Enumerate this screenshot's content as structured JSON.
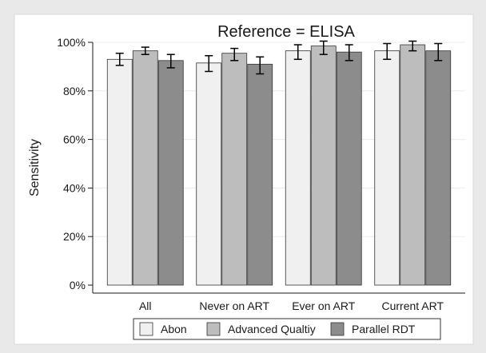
{
  "chart_data": {
    "type": "bar",
    "title": "Reference = ELISA",
    "xlabel": "",
    "ylabel": "Sensitivity",
    "ylim": [
      0,
      100
    ],
    "yticks": [
      0,
      20,
      40,
      60,
      80,
      100
    ],
    "ytick_labels": [
      "0%",
      "20%",
      "40%",
      "60%",
      "80%",
      "100%"
    ],
    "grid": true,
    "legend_position": "bottom",
    "categories": [
      "All",
      "Never on ART",
      "Ever on ART",
      "Current ART"
    ],
    "series": [
      {
        "name": "Abon",
        "color": "#f0f0f0",
        "values": [
          93,
          91.5,
          96.5,
          96.5
        ],
        "ci_low": [
          90.5,
          88,
          93,
          93
        ],
        "ci_high": [
          95.5,
          94.5,
          99,
          99.5
        ]
      },
      {
        "name": "Advanced Qualtiy",
        "color": "#bdbdbd",
        "values": [
          96.5,
          95.5,
          98.5,
          99
        ],
        "ci_low": [
          95,
          92.5,
          95,
          96.5
        ],
        "ci_high": [
          98,
          97.5,
          100.5,
          100.5
        ]
      },
      {
        "name": "Parallel RDT",
        "color": "#8c8c8c",
        "values": [
          92.5,
          91,
          96,
          96.5
        ],
        "ci_low": [
          89.5,
          87,
          92.5,
          92.5
        ],
        "ci_high": [
          95,
          94,
          99,
          99.5
        ]
      }
    ]
  }
}
